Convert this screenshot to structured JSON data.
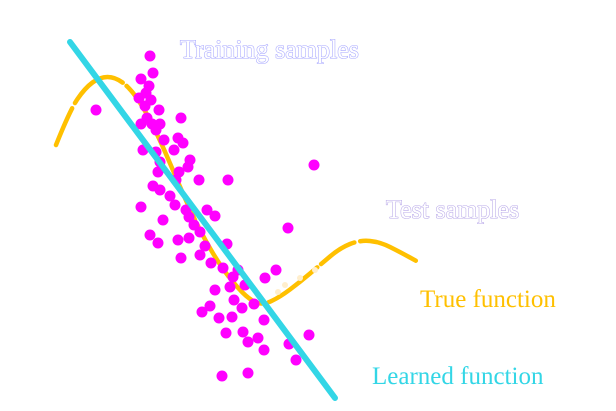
{
  "chart_data": {
    "type": "scatter",
    "title": "",
    "annotations": {
      "training_label": "Training samples",
      "test_label": "Test samples",
      "true_label": "True function",
      "learned_label": "Learned function"
    },
    "series": [
      {
        "name": "Training samples",
        "kind": "scatter",
        "color": "#ff00ff",
        "points": [
          [
            150,
            56
          ],
          [
            153,
            73
          ],
          [
            141,
            79
          ],
          [
            149,
            86
          ],
          [
            146,
            93
          ],
          [
            139,
            98
          ],
          [
            151,
            100
          ],
          [
            145,
            106
          ],
          [
            159,
            110
          ],
          [
            96,
            110
          ],
          [
            147,
            118
          ],
          [
            152,
            124
          ],
          [
            141,
            124
          ],
          [
            160,
            124
          ],
          [
            156,
            130
          ],
          [
            181,
            118
          ],
          [
            178,
            138
          ],
          [
            164,
            140
          ],
          [
            143,
            150
          ],
          [
            156,
            152
          ],
          [
            183,
            143
          ],
          [
            174,
            150
          ],
          [
            190,
            160
          ],
          [
            188,
            167
          ],
          [
            158,
            172
          ],
          [
            160,
            162
          ],
          [
            179,
            172
          ],
          [
            176,
            180
          ],
          [
            153,
            186
          ],
          [
            160,
            190
          ],
          [
            199,
            180
          ],
          [
            228,
            180
          ],
          [
            170,
            196
          ],
          [
            175,
            205
          ],
          [
            141,
            207
          ],
          [
            186,
            210
          ],
          [
            207,
            210
          ],
          [
            215,
            216
          ],
          [
            189,
            217
          ],
          [
            163,
            220
          ],
          [
            194,
            225
          ],
          [
            200,
            232
          ],
          [
            189,
            238
          ],
          [
            178,
            240
          ],
          [
            150,
            235
          ],
          [
            158,
            243
          ],
          [
            205,
            246
          ],
          [
            227,
            244
          ],
          [
            200,
            255
          ],
          [
            211,
            263
          ],
          [
            181,
            258
          ],
          [
            223,
            268
          ],
          [
            238,
            270
          ],
          [
            233,
            277
          ],
          [
            265,
            278
          ],
          [
            276,
            270
          ],
          [
            245,
            285
          ],
          [
            215,
            290
          ],
          [
            230,
            287
          ],
          [
            234,
            300
          ],
          [
            210,
            306
          ],
          [
            202,
            312
          ],
          [
            219,
            318
          ],
          [
            242,
            308
          ],
          [
            254,
            304
          ],
          [
            232,
            317
          ],
          [
            264,
            320
          ],
          [
            243,
            332
          ],
          [
            226,
            333
          ],
          [
            258,
            338
          ],
          [
            248,
            342
          ],
          [
            264,
            350
          ],
          [
            289,
            344
          ],
          [
            309,
            335
          ],
          [
            296,
            360
          ],
          [
            222,
            376
          ],
          [
            248,
            373
          ],
          [
            288,
            228
          ],
          [
            314,
            165
          ]
        ]
      },
      {
        "name": "Test samples",
        "kind": "scatter",
        "color": "#ffeecc",
        "points": [
          [
            285,
            285
          ],
          [
            300,
            278
          ],
          [
            315,
            270
          ],
          [
            278,
            292
          ]
        ]
      },
      {
        "name": "True function",
        "kind": "curve",
        "color": "#ffc000",
        "points": [
          [
            56,
            145
          ],
          [
            70,
            110
          ],
          [
            85,
            88
          ],
          [
            100,
            77
          ],
          [
            115,
            77
          ],
          [
            130,
            88
          ],
          [
            145,
            110
          ],
          [
            160,
            140
          ],
          [
            175,
            175
          ],
          [
            190,
            210
          ],
          [
            205,
            240
          ],
          [
            220,
            265
          ],
          [
            235,
            285
          ],
          [
            250,
            300
          ],
          [
            263,
            305
          ],
          [
            280,
            297
          ],
          [
            300,
            282
          ],
          [
            320,
            265
          ],
          [
            340,
            248
          ],
          [
            360,
            240
          ],
          [
            380,
            242
          ],
          [
            400,
            252
          ],
          [
            420,
            263
          ]
        ]
      },
      {
        "name": "Learned function",
        "kind": "line",
        "color": "#33d6e6",
        "points": [
          [
            70,
            42
          ],
          [
            335,
            398
          ]
        ]
      }
    ]
  }
}
